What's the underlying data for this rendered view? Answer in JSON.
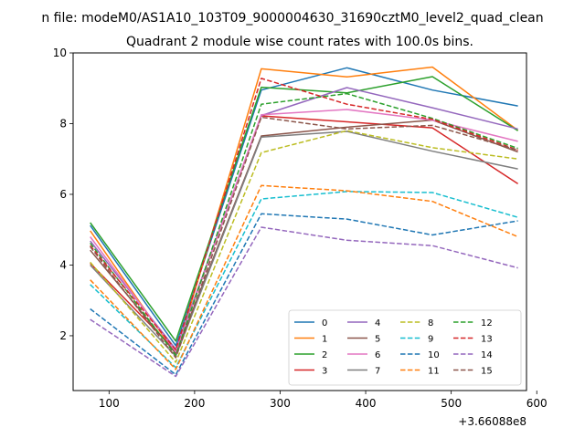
{
  "chart_data": {
    "type": "line",
    "suptitle": "n file: modeM0/AS1A10_103T09_9000004630_31690cztM0_level2_quad_clean",
    "title": "Quadrant 2 module wise count rates with 100.0s bins.",
    "xlabel": "",
    "ylabel": "",
    "x_offset_label": "+3.66088e8",
    "xlim": [
      58,
      588
    ],
    "ylim": [
      0.45,
      10.0
    ],
    "x_ticks": [
      100,
      200,
      300,
      400,
      500,
      600
    ],
    "y_ticks": [
      2,
      4,
      6,
      8,
      10
    ],
    "x": [
      78,
      178,
      278,
      378,
      478,
      578
    ],
    "legend": {
      "position": "lower-right",
      "columns": 4
    },
    "series": [
      {
        "name": "0",
        "color": "#1f77b4",
        "dash": false,
        "values": [
          5.12,
          1.72,
          8.95,
          9.58,
          8.95,
          8.5
        ]
      },
      {
        "name": "1",
        "color": "#ff7f0e",
        "dash": false,
        "values": [
          4.97,
          1.48,
          9.55,
          9.32,
          9.6,
          7.81
        ]
      },
      {
        "name": "2",
        "color": "#2ca02c",
        "dash": false,
        "values": [
          5.2,
          1.85,
          9.03,
          8.87,
          9.33,
          7.8
        ]
      },
      {
        "name": "3",
        "color": "#d62728",
        "dash": false,
        "values": [
          4.05,
          1.57,
          8.22,
          8.05,
          7.88,
          6.3
        ]
      },
      {
        "name": "4",
        "color": "#9467bd",
        "dash": false,
        "values": [
          4.68,
          1.62,
          8.23,
          9.02,
          8.45,
          7.85
        ]
      },
      {
        "name": "5",
        "color": "#8c564b",
        "dash": false,
        "values": [
          4.42,
          1.5,
          7.65,
          7.9,
          8.1,
          7.2
        ]
      },
      {
        "name": "6",
        "color": "#e377c2",
        "dash": false,
        "values": [
          4.8,
          1.55,
          8.25,
          8.4,
          8.1,
          7.5
        ]
      },
      {
        "name": "7",
        "color": "#7f7f7f",
        "dash": false,
        "values": [
          4.0,
          1.42,
          7.62,
          7.78,
          7.22,
          6.72
        ]
      },
      {
        "name": "8",
        "color": "#bcbd22",
        "dash": true,
        "values": [
          4.08,
          1.25,
          7.18,
          7.8,
          7.32,
          7.0
        ]
      },
      {
        "name": "9",
        "color": "#17becf",
        "dash": true,
        "values": [
          3.45,
          1.1,
          5.87,
          6.08,
          6.05,
          5.35
        ]
      },
      {
        "name": "10",
        "color": "#1f77b4",
        "dash": true,
        "values": [
          2.76,
          0.9,
          5.45,
          5.3,
          4.85,
          5.25
        ]
      },
      {
        "name": "11",
        "color": "#ff7f0e",
        "dash": true,
        "values": [
          3.58,
          1.05,
          6.25,
          6.1,
          5.8,
          4.8
        ]
      },
      {
        "name": "12",
        "color": "#2ca02c",
        "dash": true,
        "values": [
          4.62,
          1.45,
          8.55,
          8.85,
          8.15,
          7.3
        ]
      },
      {
        "name": "13",
        "color": "#d62728",
        "dash": true,
        "values": [
          4.55,
          1.6,
          9.28,
          8.55,
          8.12,
          7.25
        ]
      },
      {
        "name": "14",
        "color": "#9467bd",
        "dash": true,
        "values": [
          2.46,
          0.85,
          5.07,
          4.7,
          4.55,
          3.92
        ]
      },
      {
        "name": "15",
        "color": "#8c564b",
        "dash": true,
        "values": [
          4.52,
          1.38,
          8.18,
          7.85,
          7.95,
          7.25
        ]
      }
    ]
  }
}
